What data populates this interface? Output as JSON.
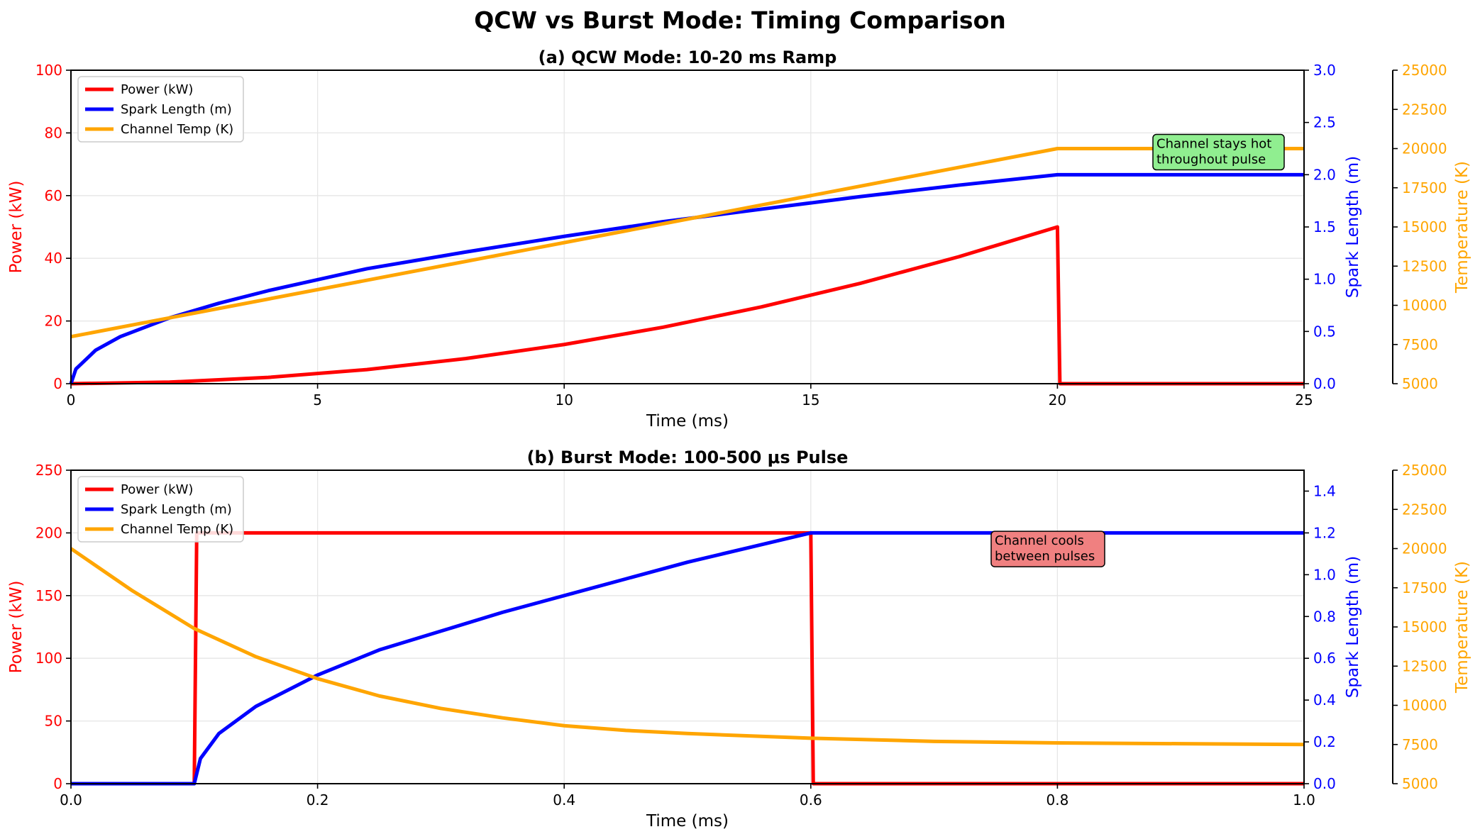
{
  "figure": {
    "title": "QCW vs Burst Mode: Timing Comparison"
  },
  "colors": {
    "power": "#ff0000",
    "spark": "#0000ff",
    "temperature": "#ffa500",
    "grid": "#e6e6e6",
    "annot_qcw_bg": "#90ee90",
    "annot_burst_bg": "#f08080"
  },
  "chart_data": [
    {
      "type": "line",
      "title": "(a) QCW Mode: 10-20 ms Ramp",
      "xlabel": "Time (ms)",
      "xlim": [
        0,
        25
      ],
      "xticks": [
        0,
        5,
        10,
        15,
        20,
        25
      ],
      "xtick_labels": [
        "0",
        "5",
        "10",
        "15",
        "20",
        "25"
      ],
      "y_axes": {
        "left": {
          "label": "Power (kW)",
          "lim": [
            0,
            100
          ],
          "ticks": [
            0,
            20,
            40,
            60,
            80,
            100
          ],
          "tick_labels": [
            "0",
            "20",
            "40",
            "60",
            "80",
            "100"
          ]
        },
        "right": {
          "label": "Spark Length (m)",
          "lim": [
            0,
            3
          ],
          "ticks": [
            0,
            0.5,
            1,
            1.5,
            2,
            2.5,
            3
          ],
          "tick_labels": [
            "0.0",
            "0.5",
            "1.0",
            "1.5",
            "2.0",
            "2.5",
            "3.0"
          ]
        },
        "outer_right": {
          "label": "Temperature (K)",
          "lim": [
            5000,
            25000
          ],
          "ticks": [
            5000,
            7500,
            10000,
            12500,
            15000,
            17500,
            20000,
            22500,
            25000
          ],
          "tick_labels": [
            "5000",
            "7500",
            "10000",
            "12500",
            "15000",
            "17500",
            "20000",
            "22500",
            "25000"
          ]
        }
      },
      "series": [
        {
          "name": "Power (kW)",
          "axis": "left",
          "x": [
            0,
            2,
            4,
            6,
            8,
            10,
            12,
            14,
            16,
            18,
            20,
            20.05,
            25
          ],
          "y": [
            0,
            0.5,
            2,
            4.5,
            8,
            12.5,
            18,
            24.5,
            32,
            40.5,
            50,
            0,
            0
          ]
        },
        {
          "name": "Spark Length (m)",
          "axis": "right",
          "x": [
            0,
            0.1,
            0.5,
            1,
            2,
            3,
            4,
            6,
            8,
            10,
            12,
            14,
            16,
            18,
            20,
            25
          ],
          "y": [
            0,
            0.14,
            0.32,
            0.45,
            0.63,
            0.77,
            0.89,
            1.1,
            1.26,
            1.41,
            1.55,
            1.67,
            1.79,
            1.9,
            2.0,
            2.0
          ]
        },
        {
          "name": "Channel Temp (K)",
          "axis": "outer_right",
          "x": [
            0,
            20,
            25
          ],
          "y": [
            8000,
            20000,
            20000
          ]
        }
      ],
      "legend": {
        "position": "upper-left"
      },
      "annotation": {
        "lines": [
          "Channel stays hot",
          "throughout pulse"
        ],
        "x": 22,
        "y": 75
      },
      "grid": true
    },
    {
      "type": "line",
      "title": "(b) Burst Mode: 100-500 μs Pulse",
      "xlabel": "Time (ms)",
      "xlim": [
        0,
        1
      ],
      "xticks": [
        0,
        0.2,
        0.4,
        0.6,
        0.8,
        1.0
      ],
      "xtick_labels": [
        "0.0",
        "0.2",
        "0.4",
        "0.6",
        "0.8",
        "1.0"
      ],
      "y_axes": {
        "left": {
          "label": "Power (kW)",
          "lim": [
            0,
            250
          ],
          "ticks": [
            0,
            50,
            100,
            150,
            200,
            250
          ],
          "tick_labels": [
            "0",
            "50",
            "100",
            "150",
            "200",
            "250"
          ]
        },
        "right": {
          "label": "Spark Length (m)",
          "lim": [
            0,
            1.5
          ],
          "ticks": [
            0,
            0.2,
            0.4,
            0.6,
            0.8,
            1.0,
            1.2,
            1.4
          ],
          "tick_labels": [
            "0.0",
            "0.2",
            "0.4",
            "0.6",
            "0.8",
            "1.0",
            "1.2",
            "1.4"
          ]
        },
        "outer_right": {
          "label": "Temperature (K)",
          "lim": [
            5000,
            25000
          ],
          "ticks": [
            5000,
            7500,
            10000,
            12500,
            15000,
            17500,
            20000,
            22500,
            25000
          ],
          "tick_labels": [
            "5000",
            "7500",
            "10000",
            "12500",
            "15000",
            "17500",
            "20000",
            "22500",
            "25000"
          ]
        }
      },
      "series": [
        {
          "name": "Power (kW)",
          "axis": "left",
          "x": [
            0,
            0.1,
            0.102,
            0.6,
            0.602,
            1.0
          ],
          "y": [
            0,
            0,
            200,
            200,
            0,
            0
          ]
        },
        {
          "name": "Spark Length (m)",
          "axis": "right",
          "x": [
            0,
            0.1,
            0.105,
            0.12,
            0.15,
            0.2,
            0.25,
            0.3,
            0.35,
            0.4,
            0.45,
            0.5,
            0.55,
            0.6,
            1.0
          ],
          "y": [
            0,
            0,
            0.12,
            0.24,
            0.37,
            0.52,
            0.64,
            0.73,
            0.82,
            0.9,
            0.98,
            1.06,
            1.13,
            1.2,
            1.2
          ]
        },
        {
          "name": "Channel Temp (K)",
          "axis": "outer_right",
          "x": [
            0,
            0.05,
            0.1,
            0.15,
            0.2,
            0.25,
            0.3,
            0.35,
            0.4,
            0.45,
            0.5,
            0.6,
            0.7,
            0.8,
            0.9,
            1.0
          ],
          "y": [
            20000,
            17300,
            14900,
            13100,
            11700,
            10600,
            9800,
            9200,
            8700,
            8400,
            8200,
            7900,
            7700,
            7600,
            7550,
            7500
          ]
        }
      ],
      "legend": {
        "position": "upper-left"
      },
      "annotation": {
        "lines": [
          "Channel cools",
          "between pulses"
        ],
        "x": 0.75,
        "y": 190
      },
      "grid": true
    }
  ]
}
